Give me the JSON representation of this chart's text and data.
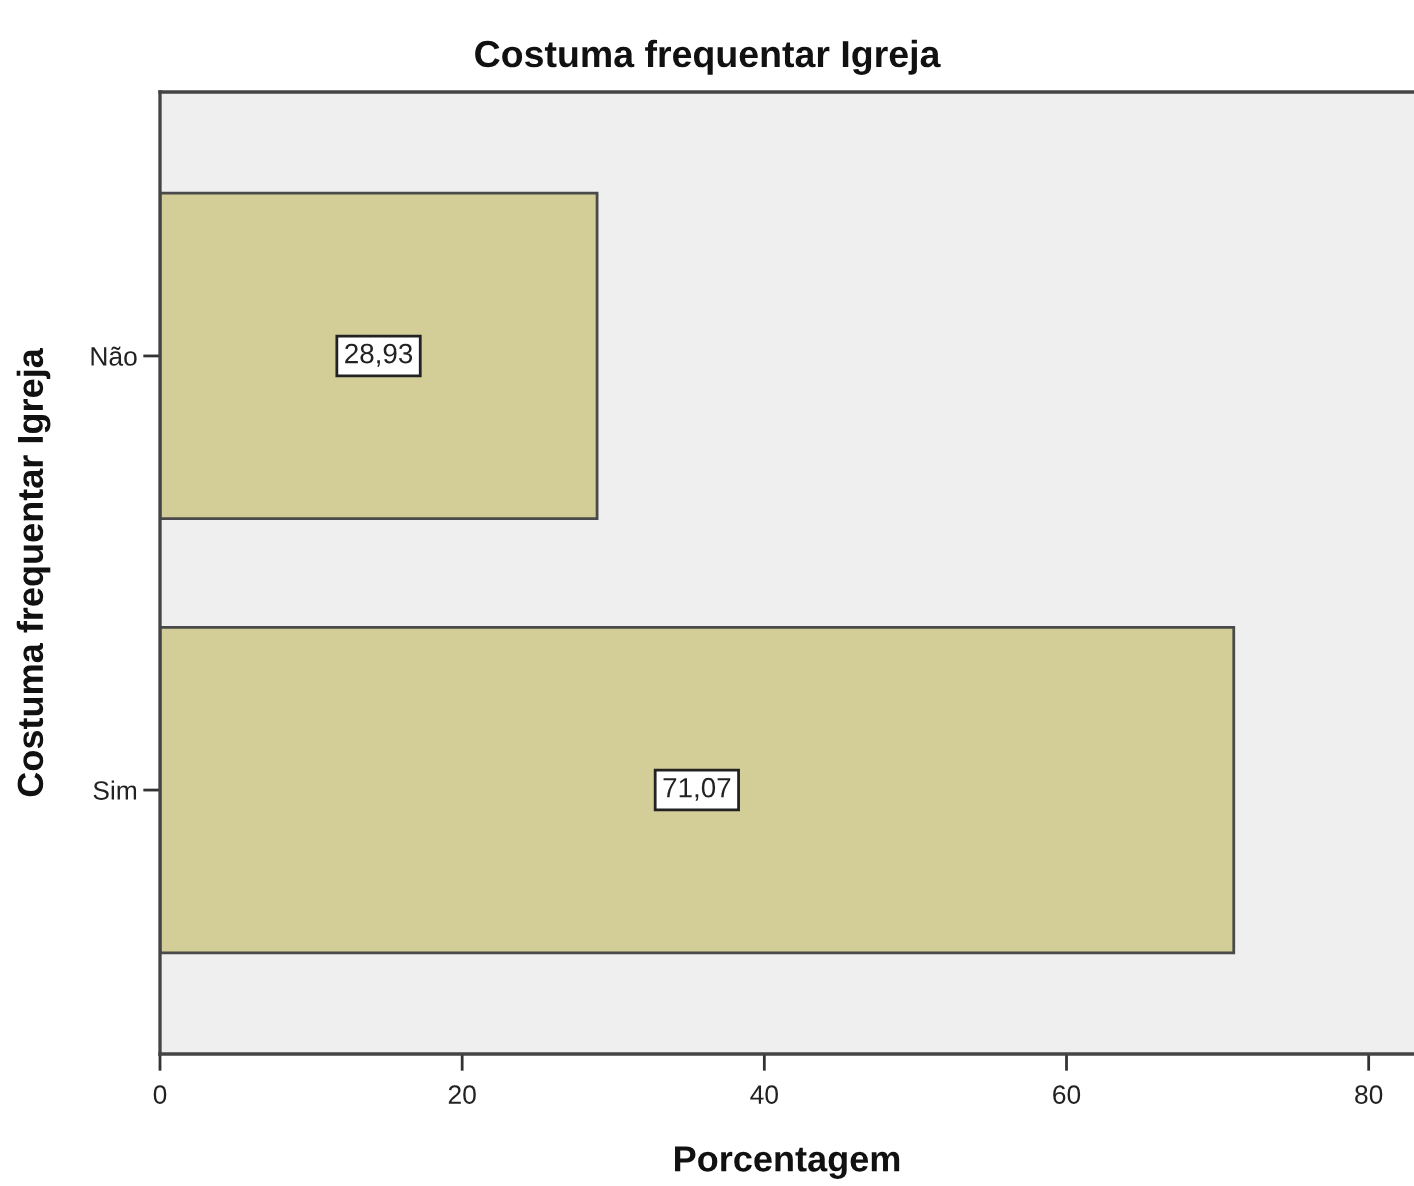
{
  "chart_data": {
    "type": "bar",
    "orientation": "horizontal",
    "title": "Costuma frequentar Igreja",
    "xlabel": "Porcentagem",
    "ylabel": "Costuma frequentar Igreja",
    "categories": [
      "Não",
      "Sim"
    ],
    "values": [
      28.93,
      71.07
    ],
    "value_labels": [
      "28,93",
      "71,07"
    ],
    "color": "#d3ce97",
    "xlim": [
      0,
      83
    ],
    "xticks": [
      0,
      20,
      40,
      60,
      80
    ]
  }
}
